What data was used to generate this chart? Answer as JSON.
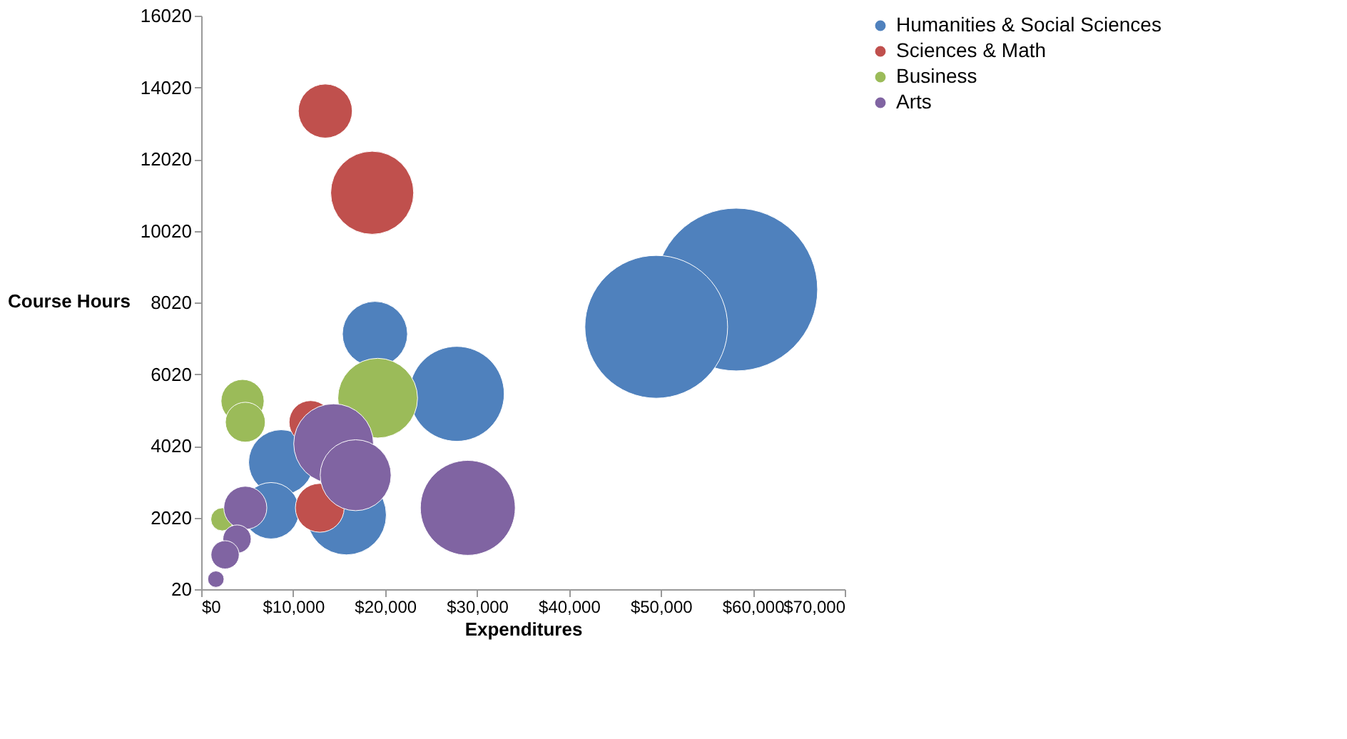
{
  "chart_data": {
    "type": "bubble",
    "xlabel": "Expenditures",
    "ylabel": "Course Hours",
    "xlim": [
      0,
      70000
    ],
    "xticks": [
      {
        "value": 0,
        "label": "$0"
      },
      {
        "value": 10000,
        "label": "$10,000"
      },
      {
        "value": 20000,
        "label": "$20,000"
      },
      {
        "value": 30000,
        "label": "$30,000"
      },
      {
        "value": 40000,
        "label": "$40,000"
      },
      {
        "value": 50000,
        "label": "$50,000"
      },
      {
        "value": 60000,
        "label": "$60,000"
      },
      {
        "value": 70000,
        "label": "$70,000"
      }
    ],
    "ylim": [
      20,
      16020
    ],
    "yticks": [
      20,
      2020,
      4020,
      6020,
      8020,
      10020,
      12020,
      14020,
      16020
    ],
    "grid": false,
    "legend": "right",
    "series": [
      {
        "name": "Humanities & Social Sciences",
        "color": "#4f81bd",
        "x": [
          58200,
          49500,
          27800,
          18900,
          8700,
          7600,
          15800
        ],
        "values": [
          8380,
          7340,
          5470,
          7140,
          3560,
          2210,
          2090
        ],
        "sizes": [
          1,
          0.77,
          0.34,
          0.16,
          0.16,
          0.12,
          0.24
        ]
      },
      {
        "name": "Sciences & Math",
        "color": "#c0504d",
        "x": [
          13500,
          18600,
          11900,
          12900
        ],
        "values": [
          13360,
          11080,
          4680,
          2290
        ],
        "sizes": [
          0.11,
          0.26,
          0.07,
          0.09
        ]
      },
      {
        "name": "Business",
        "color": "#9bbb59",
        "x": [
          4500,
          4800,
          19200,
          2300
        ],
        "values": [
          5270,
          4680,
          5350,
          1970
        ],
        "sizes": [
          0.07,
          0.06,
          0.24,
          0.02
        ]
      },
      {
        "name": "Arts",
        "color": "#8064a2",
        "x": [
          29000,
          14400,
          16800,
          4800,
          3900,
          2600,
          1600
        ],
        "values": [
          2290,
          4080,
          3200,
          2290,
          1420,
          980,
          300
        ],
        "sizes": [
          0.34,
          0.24,
          0.19,
          0.07,
          0.03,
          0.03,
          0.01
        ]
      }
    ]
  }
}
